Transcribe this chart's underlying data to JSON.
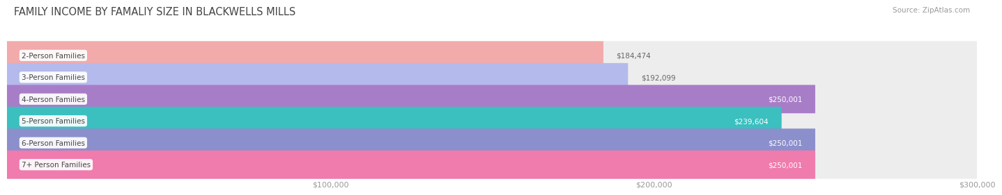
{
  "title": "FAMILY INCOME BY FAMALIY SIZE IN BLACKWELLS MILLS",
  "source": "Source: ZipAtlas.com",
  "categories": [
    "2-Person Families",
    "3-Person Families",
    "4-Person Families",
    "5-Person Families",
    "6-Person Families",
    "7+ Person Families"
  ],
  "values": [
    184474,
    192099,
    250001,
    239604,
    250001,
    250001
  ],
  "labels": [
    "$184,474",
    "$192,099",
    "$250,001",
    "$239,604",
    "$250,001",
    "$250,001"
  ],
  "bar_colors": [
    "#F2AAAA",
    "#B4BAEC",
    "#A87DC8",
    "#3BBFBF",
    "#8B8FCC",
    "#F07BAD"
  ],
  "bar_bg_color": "#EDEDED",
  "xmin": 0,
  "xmax": 300000,
  "xticks": [
    100000,
    200000,
    300000
  ],
  "xtick_labels": [
    "$100,000",
    "$200,000",
    "$300,000"
  ],
  "background_color": "#FFFFFF",
  "title_fontsize": 10.5,
  "label_fontsize": 7.5,
  "tick_fontsize": 8,
  "source_fontsize": 7.5
}
